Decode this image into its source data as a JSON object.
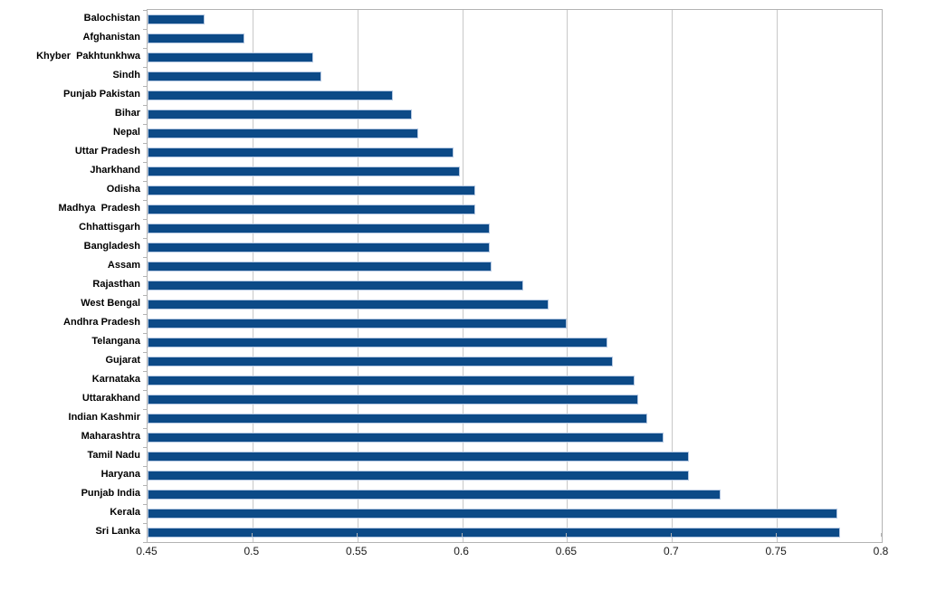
{
  "chart_data": {
    "type": "bar",
    "orientation": "horizontal",
    "title": "",
    "xlabel": "",
    "ylabel": "",
    "categories": [
      "Balochistan",
      "Afghanistan",
      "Khyber  Pakhtunkhwa",
      "Sindh",
      "Punjab Pakistan",
      "Bihar",
      "Nepal",
      "Uttar Pradesh",
      "Jharkhand",
      "Odisha",
      "Madhya  Pradesh",
      "Chhattisgarh",
      "Bangladesh",
      "Assam",
      "Rajasthan",
      "West Bengal",
      "Andhra Pradesh",
      "Telangana",
      "Gujarat",
      "Karnataka",
      "Uttarakhand",
      "Indian Kashmir",
      "Maharashtra",
      "Tamil Nadu",
      "Haryana",
      "Punjab India",
      "Kerala",
      "Sri Lanka"
    ],
    "values": [
      0.477,
      0.496,
      0.529,
      0.533,
      0.567,
      0.576,
      0.579,
      0.596,
      0.599,
      0.606,
      0.606,
      0.613,
      0.613,
      0.614,
      0.629,
      0.641,
      0.65,
      0.669,
      0.672,
      0.682,
      0.684,
      0.688,
      0.696,
      0.708,
      0.708,
      0.723,
      0.779,
      0.78
    ],
    "xlim": [
      0.45,
      0.8
    ],
    "xticks": [
      0.45,
      0.5,
      0.55,
      0.6,
      0.65,
      0.7,
      0.75,
      0.8
    ],
    "xtick_labels": [
      "0.45",
      "0.5",
      "0.55",
      "0.6",
      "0.65",
      "0.7",
      "0.75",
      "0.8"
    ],
    "grid": true,
    "legend": "none",
    "colors": {
      "bar_fill": "#0c4a87",
      "bar_border": "#b5c8e2",
      "gridline": "#c8c8c8",
      "plot_border": "#b3b3b3",
      "label_text": "#000000",
      "tick_text": "#1a1a1a",
      "background": "#ffffff"
    }
  }
}
